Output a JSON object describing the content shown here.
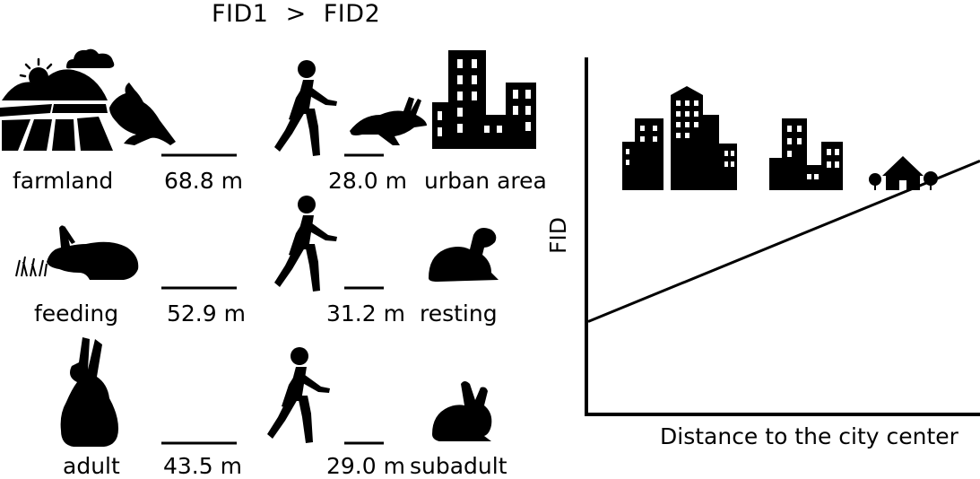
{
  "header": {
    "left": "FID1",
    "op": ">",
    "right": "FID2"
  },
  "rows": [
    {
      "left_label": "farmland",
      "fid1": "68.8 m",
      "fid2": "28.0 m",
      "right_label": "urban area",
      "left_icon": "farmland-landscape-icon",
      "right_icon": "city-skyline-icon"
    },
    {
      "left_label": "feeding",
      "fid1": "52.9 m",
      "fid2": "31.2 m",
      "right_label": "resting",
      "left_icon": "feeding-rabbit-icon",
      "right_icon": "resting-rabbit-icon"
    },
    {
      "left_label": "adult",
      "fid1": "43.5 m",
      "fid2": "29.0 m",
      "right_label": "subadult",
      "left_icon": "adult-rabbit-icon",
      "right_icon": "subadult-rabbit-icon"
    }
  ],
  "figure_icons": [
    "walking-person-icon",
    "running-rabbit-icon",
    "large-city-icon",
    "small-city-icon",
    "village-house-icon"
  ],
  "chart_data": {
    "type": "line",
    "ylabel": "FID",
    "xlabel": "Distance to the city center",
    "trend": "increasing",
    "x": [
      0,
      1
    ],
    "y": [
      0.26,
      0.71
    ],
    "xlim": [
      0,
      1
    ],
    "ylim": [
      0,
      1
    ]
  }
}
